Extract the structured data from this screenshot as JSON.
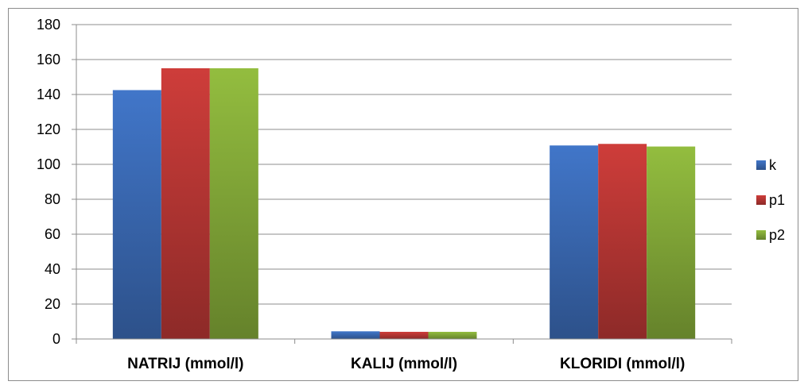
{
  "chart_data": {
    "type": "bar",
    "title": "",
    "xlabel": "",
    "ylabel": "",
    "categories": [
      "NATRIJ (mmol/l)",
      "KALIJ (mmol/l)",
      "KLORIDI (mmol/l)"
    ],
    "series": [
      {
        "name": "k",
        "values": [
          142.5,
          4.4,
          110.8
        ],
        "color": "#3e70bf"
      },
      {
        "name": "p1",
        "values": [
          155.0,
          4.1,
          111.7
        ],
        "color": "#c43a37"
      },
      {
        "name": "p2",
        "values": [
          155.0,
          4.1,
          110.2
        ],
        "color": "#8cb43c"
      }
    ],
    "ylim": [
      0,
      180
    ],
    "yticks": [
      0,
      20,
      40,
      60,
      80,
      100,
      120,
      140,
      160,
      180
    ],
    "grid": true,
    "legend_position": "right"
  }
}
